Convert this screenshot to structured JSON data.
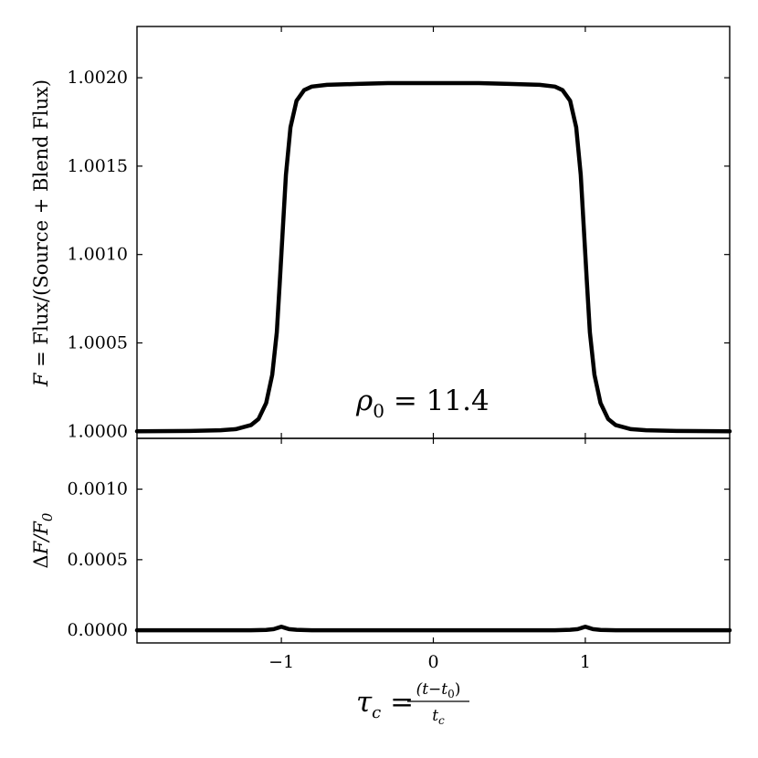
{
  "chart_data": [
    {
      "type": "line",
      "panel": "top",
      "ylabel": "F = Flux/(Source + Blend Flux)",
      "ylabel_parts": {
        "var": "F",
        "eq": " = ",
        "text": "Flux/(Source + Blend Flux)"
      },
      "annotation": "ρ0 = 11.4",
      "annotation_parts": {
        "rho": "ρ",
        "sub": "0",
        "rest": " = 11.4"
      },
      "xlim": [
        -1.95,
        1.95
      ],
      "ylim": [
        0.99996,
        1.00229
      ],
      "yticks": [
        1.0,
        1.0005,
        1.001,
        1.0015,
        1.002
      ],
      "ytick_labels": [
        "1.0000",
        "1.0005",
        "1.0010",
        "1.0015",
        "1.0020"
      ],
      "xticks": [
        -1,
        0,
        1
      ],
      "series": [
        {
          "x": [
            -1.95,
            -1.6,
            -1.4,
            -1.3,
            -1.2,
            -1.15,
            -1.1,
            -1.06,
            -1.03,
            -1.01,
            -1.0,
            -0.99,
            -0.97,
            -0.94,
            -0.9,
            -0.85,
            -0.8,
            -0.7,
            -0.5,
            -0.3,
            0.0,
            0.3,
            0.5,
            0.7,
            0.8,
            0.85,
            0.9,
            0.94,
            0.97,
            0.99,
            1.0,
            1.01,
            1.03,
            1.06,
            1.1,
            1.15,
            1.2,
            1.3,
            1.4,
            1.6,
            1.95
          ],
          "y": [
            1.0,
            1.000002,
            1.000006,
            1.000012,
            1.000035,
            1.00007,
            1.00016,
            1.00032,
            1.00056,
            1.00085,
            1.001,
            1.00115,
            1.00145,
            1.00172,
            1.00187,
            1.00193,
            1.00195,
            1.00196,
            1.001965,
            1.00197,
            1.00197,
            1.00197,
            1.001965,
            1.00196,
            1.00195,
            1.00193,
            1.00187,
            1.00172,
            1.00145,
            1.00115,
            1.001,
            1.00085,
            1.00056,
            1.00032,
            1.00016,
            1.00007,
            1.000035,
            1.000012,
            1.000006,
            1.000002,
            1.0
          ]
        }
      ]
    },
    {
      "type": "line",
      "panel": "bottom",
      "ylabel": "ΔF/F0",
      "ylabel_parts": {
        "delta": "Δ",
        "var": "F/F",
        "sub": "0"
      },
      "xlabel": "τc = (t−t0)/tc",
      "xlabel_parts": {
        "tau": "τ",
        "c": "c",
        "eq": " = ",
        "num": "(t−t",
        "num_sub": "0",
        "num_close": ")",
        "den": "t",
        "den_sub": "c"
      },
      "xlim": [
        -1.95,
        1.95
      ],
      "ylim": [
        -9e-05,
        0.00136
      ],
      "yticks": [
        0.0,
        0.0005,
        0.001
      ],
      "ytick_labels": [
        "0.0000",
        "0.0005",
        "0.0010"
      ],
      "xticks": [
        -1,
        0,
        1
      ],
      "xtick_labels": [
        "−1",
        "0",
        "1"
      ],
      "series": [
        {
          "x": [
            -1.95,
            -1.2,
            -1.1,
            -1.05,
            -1.02,
            -1.0,
            -0.98,
            -0.95,
            -0.9,
            -0.8,
            0.0,
            0.8,
            0.9,
            0.95,
            0.98,
            1.0,
            1.02,
            1.05,
            1.1,
            1.2,
            1.95
          ],
          "y": [
            0.0,
            0.0,
            2e-06,
            8e-06,
            1.8e-05,
            2.5e-05,
            1.8e-05,
            8e-06,
            3e-06,
            0.0,
            0.0,
            0.0,
            3e-06,
            8e-06,
            1.8e-05,
            2.5e-05,
            1.8e-05,
            8e-06,
            2e-06,
            0.0,
            0.0
          ]
        }
      ]
    }
  ]
}
